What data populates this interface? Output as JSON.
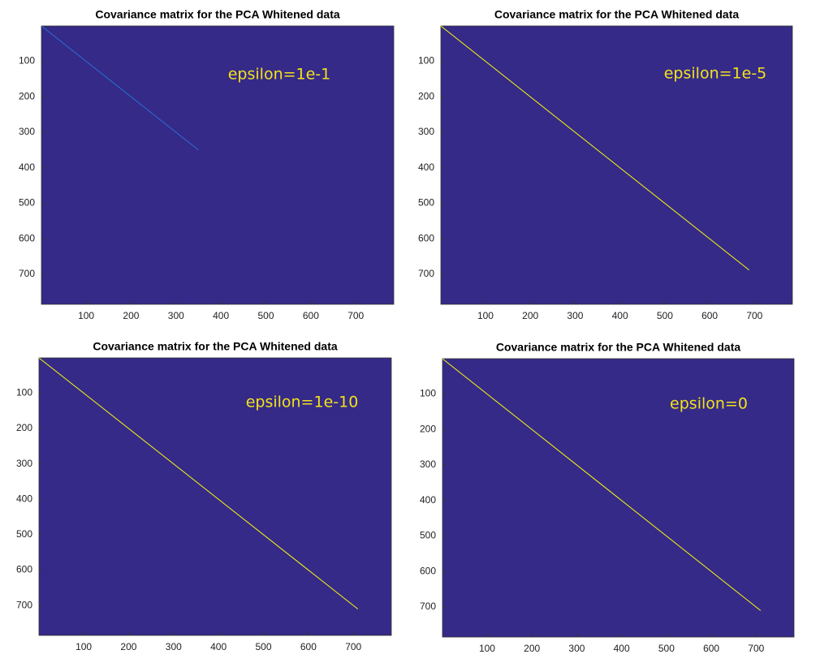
{
  "chart_data": [
    {
      "type": "heatmap",
      "title": "Covariance matrix for the PCA Whitened data",
      "annotation": "epsilon=1e-1",
      "background": "#352a87",
      "xlim": [
        0.5,
        784.5
      ],
      "ylim": [
        784.5,
        0.5
      ],
      "xticks": [
        100,
        200,
        300,
        400,
        500,
        600,
        700
      ],
      "yticks": [
        100,
        200,
        300,
        400,
        500,
        600,
        700
      ],
      "series": [
        {
          "color": "#2a6fd4",
          "x": [
            1,
            350
          ],
          "values": [
            1,
            350
          ]
        }
      ]
    },
    {
      "type": "heatmap",
      "title": "Covariance matrix for the PCA Whitened data",
      "annotation": "epsilon=1e-5",
      "background": "#352a87",
      "xlim": [
        0.5,
        784.5
      ],
      "ylim": [
        784.5,
        0.5
      ],
      "xticks": [
        100,
        200,
        300,
        400,
        500,
        600,
        700
      ],
      "yticks": [
        100,
        200,
        300,
        400,
        500,
        600,
        700
      ],
      "series": [
        {
          "color": "#f9fb0e",
          "x": [
            1,
            688
          ],
          "values": [
            1,
            688
          ]
        }
      ]
    },
    {
      "type": "heatmap",
      "title": "Covariance matrix for the PCA Whitened data",
      "annotation": "epsilon=1e-10",
      "background": "#352a87",
      "xlim": [
        0.5,
        784.5
      ],
      "ylim": [
        784.5,
        0.5
      ],
      "xticks": [
        100,
        200,
        300,
        400,
        500,
        600,
        700
      ],
      "yticks": [
        100,
        200,
        300,
        400,
        500,
        600,
        700
      ],
      "series": [
        {
          "color": "#f9fb0e",
          "x": [
            1,
            710
          ],
          "values": [
            1,
            710
          ]
        }
      ]
    },
    {
      "type": "heatmap",
      "title": "Covariance matrix for the PCA Whitened data",
      "annotation": "epsilon=0",
      "background": "#352a87",
      "xlim": [
        0.5,
        784.5
      ],
      "ylim": [
        784.5,
        0.5
      ],
      "xticks": [
        100,
        200,
        300,
        400,
        500,
        600,
        700
      ],
      "yticks": [
        100,
        200,
        300,
        400,
        500,
        600,
        700
      ],
      "series": [
        {
          "color": "#f9fb0e",
          "x": [
            1,
            710
          ],
          "values": [
            1,
            710
          ]
        }
      ]
    }
  ]
}
